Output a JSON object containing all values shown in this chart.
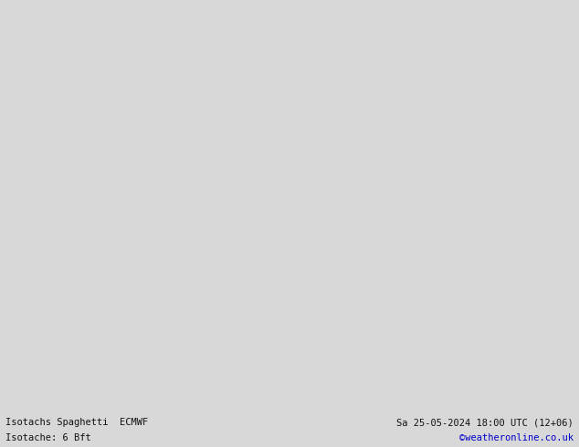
{
  "title_left": "Isotachs Spaghetti  ECMWF",
  "title_left2": "Isotache: 6 Bft",
  "title_right": "Sa 25-05-2024 18:00 UTC (12+06)",
  "title_right2": "©weatheronline.co.uk",
  "title_right2_color": "#0000cc",
  "background_color": "#e8e8e8",
  "land_color": "#aaddaa",
  "sea_color": "#e8e8e8",
  "border_color": "#111111",
  "coastline_color": "#111111",
  "label_color": "#111111",
  "footer_bg": "#d8d8d8",
  "footer_text_color": "#111111",
  "figsize": [
    6.34,
    4.9
  ],
  "dpi": 100,
  "map_extent": [
    0,
    40,
    54,
    72
  ],
  "title_fontsize": 8,
  "footer_fontsize": 7.5
}
